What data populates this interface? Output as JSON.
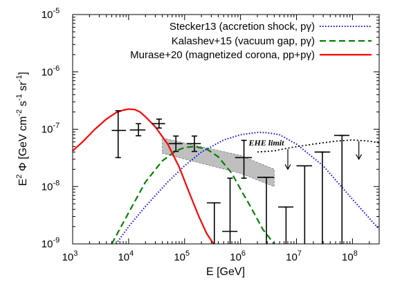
{
  "chart_data": {
    "type": "line",
    "xlabel_parts": {
      "main": "E [GeV]"
    },
    "ylabel_parts": {
      "e": "E",
      "e_sup": "2",
      "phi": " Φ [GeV cm",
      "cm_sup": "-2",
      "s": " s",
      "s_sup": "-1",
      "sr": " sr",
      "sr_sup": "-1",
      "close": "]"
    },
    "x_scale": "log",
    "y_scale": "log",
    "xlim": [
      1000,
      300000000
    ],
    "ylim": [
      1e-09,
      1e-05
    ],
    "x_ticks": [
      {
        "value": 1000,
        "base": "10",
        "exp": "3"
      },
      {
        "value": 10000,
        "base": "10",
        "exp": "4"
      },
      {
        "value": 100000,
        "base": "10",
        "exp": "5"
      },
      {
        "value": 1000000,
        "base": "10",
        "exp": "6"
      },
      {
        "value": 10000000,
        "base": "10",
        "exp": "7"
      },
      {
        "value": 100000000,
        "base": "10",
        "exp": "8"
      }
    ],
    "y_ticks": [
      {
        "value": 1e-09,
        "base": "10",
        "exp": "-9"
      },
      {
        "value": 1e-08,
        "base": "10",
        "exp": "-8"
      },
      {
        "value": 1e-07,
        "base": "10",
        "exp": "-7"
      },
      {
        "value": 1e-06,
        "base": "10",
        "exp": "-6"
      },
      {
        "value": 1e-05,
        "base": "10",
        "exp": "-5"
      }
    ],
    "grid": false,
    "legend_position": "top-right",
    "series": [
      {
        "name": "Stecker13 (accretion shock, pγ)",
        "color": "#0000ff",
        "style": "dotted",
        "x": [
          6000,
          10000,
          20000,
          50000,
          100000,
          200000,
          500000,
          1000000,
          2000000,
          3000000,
          5000000,
          10000000,
          30000000,
          100000000,
          300000000
        ],
        "y": [
          1e-09,
          2e-09,
          4.5e-09,
          1.2e-08,
          2.3e-08,
          4e-08,
          6.5e-08,
          8e-08,
          8.8e-08,
          8.7e-08,
          8e-08,
          5.5e-08,
          2.3e-08,
          6e-09,
          1.8e-09
        ]
      },
      {
        "name": "Kalashev+15 (vacuum gap, pγ)",
        "color": "#008000",
        "style": "dashed",
        "x": [
          5000,
          10000,
          20000,
          40000,
          70000,
          100000,
          150000,
          250000,
          400000,
          700000,
          1000000,
          1500000,
          2500000,
          4000000
        ],
        "y": [
          1e-09,
          3.5e-09,
          1.2e-08,
          2.8e-08,
          4.2e-08,
          4.8e-08,
          5e-08,
          4.5e-08,
          3.3e-08,
          1.7e-08,
          9e-09,
          4.5e-09,
          1.8e-09,
          1e-09
        ]
      },
      {
        "name": "Murase+20 (magnetized corona, pp+pγ)",
        "color": "#ff0000",
        "style": "solid",
        "x": [
          1000,
          1500,
          2500,
          4000,
          6000,
          8000,
          10000,
          13000,
          16000,
          20000,
          30000,
          50000,
          80000,
          120000,
          180000,
          250000,
          330000
        ],
        "y": [
          4.2e-08,
          6e-08,
          1e-07,
          1.5e-07,
          1.95e-07,
          2.15e-07,
          2.25e-07,
          2.2e-07,
          2e-07,
          1.65e-07,
          1.1e-07,
          5.5e-08,
          2.2e-08,
          8e-09,
          3e-09,
          1.5e-09,
          1e-09
        ]
      }
    ],
    "data_points": [
      {
        "x": 6500,
        "xerr": [
          5000,
          9000
        ],
        "y": 9.5e-08,
        "yerr": [
          3.2e-08,
          2.1e-07
        ]
      },
      {
        "x": 15000,
        "xerr": [
          10500,
          20000
        ],
        "y": 9.7e-08,
        "yerr": [
          7.7e-08,
          1.25e-07
        ]
      },
      {
        "x": 35000,
        "xerr": [
          26000,
          45000
        ],
        "y": 1.25e-07,
        "yerr": [
          1.05e-07,
          1.5e-07
        ]
      },
      {
        "x": 70000,
        "xerr": [
          52000,
          92000
        ],
        "y": 5.6e-08,
        "yerr": [
          4.1e-08,
          7.6e-08
        ]
      },
      {
        "x": 150000,
        "xerr": [
          110000,
          195000
        ],
        "y": 5.6e-08,
        "yerr": [
          4.1e-08,
          7.6e-08
        ]
      },
      {
        "x": 1150000,
        "xerr": [
          800000,
          1600000
        ],
        "y": 3.2e-08,
        "yerr": [
          1.4e-08,
          6.4e-08
        ]
      },
      {
        "x": 2900000,
        "xerr": [
          2000000,
          4000000
        ],
        "y": 1.45e-08,
        "yerr": [
          1e-09,
          1.45e-08
        ]
      },
      {
        "x": 340000,
        "xerr": [
          250000,
          440000
        ],
        "y": 5.2e-09,
        "yerr": [
          1e-09,
          5.2e-09
        ]
      },
      {
        "x": 650000,
        "xerr": [
          470000,
          880000
        ],
        "y": 1.65e-09,
        "yerr": [
          1e-09,
          1.4e-08
        ]
      },
      {
        "x": 6500000,
        "xerr": [
          4700000,
          8800000
        ],
        "y": 4.4e-09,
        "yerr": [
          1e-09,
          4.4e-09
        ]
      },
      {
        "x": 14000000,
        "xerr": [
          10000000,
          19000000
        ],
        "y": 2.3e-08,
        "yerr": [
          1e-09,
          2.3e-08
        ]
      },
      {
        "x": 29000000,
        "xerr": [
          21000000,
          40000000
        ],
        "y": 4e-08,
        "yerr": [
          1e-09,
          4e-08
        ]
      },
      {
        "x": 65000000,
        "xerr": [
          47000000,
          88000000
        ],
        "y": 7.8e-08,
        "yerr": [
          1e-09,
          7.8e-08
        ]
      }
    ],
    "band": {
      "color": "#bfbfbf",
      "upper": [
        {
          "x": 40000,
          "y": 7e-08
        },
        {
          "x": 1000000,
          "y": 3.5e-08
        },
        {
          "x": 4000000,
          "y": 2e-08
        }
      ],
      "lower": [
        {
          "x": 40000,
          "y": 3.8e-08
        },
        {
          "x": 1000000,
          "y": 1.7e-08
        },
        {
          "x": 4000000,
          "y": 1e-08
        }
      ]
    },
    "ehe_limit": {
      "label": "EHE limit",
      "x": [
        2000000,
        4000000,
        8000000,
        20000000,
        50000000,
        100000000,
        200000000,
        300000000
      ],
      "y": [
        4e-08,
        4.2e-08,
        4.8e-08,
        5.5e-08,
        6.2e-08,
        6.5e-08,
        6.2e-08,
        5.8e-08
      ],
      "arrows": [
        {
          "x": 7000000,
          "y_from": 4.5e-08,
          "y_to": 2e-08
        },
        {
          "x": 130000000,
          "y_from": 6.2e-08,
          "y_to": 3e-08
        }
      ]
    }
  }
}
